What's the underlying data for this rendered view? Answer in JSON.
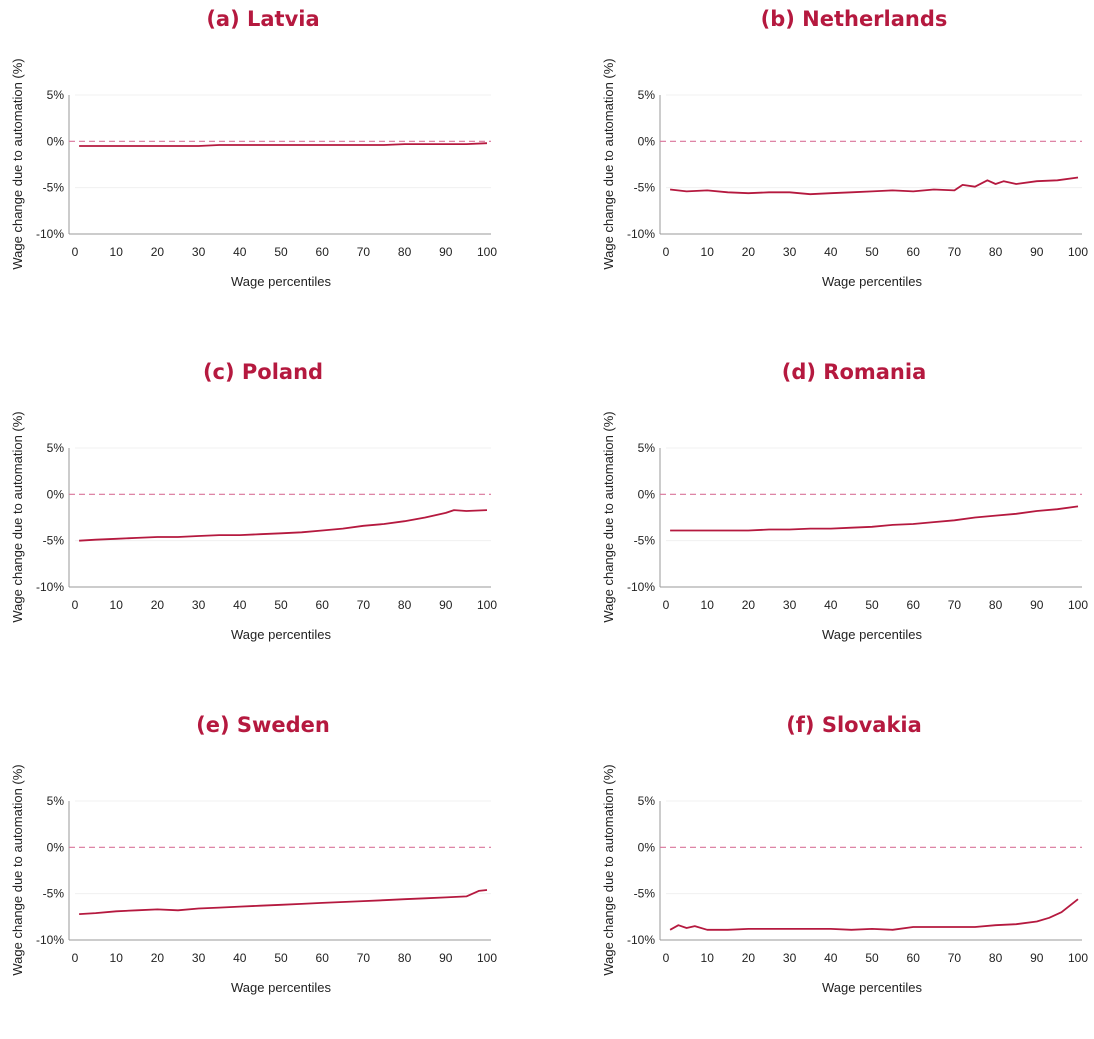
{
  "chart_data": [
    {
      "type": "line",
      "title": "(a) Latvia",
      "xlabel": "Wage percentiles",
      "ylabel": "Wage change due to automation (%)",
      "xlim": [
        0,
        100
      ],
      "ylim": [
        -10,
        5
      ],
      "xticks": [
        "0",
        "10",
        "20",
        "30",
        "40",
        "50",
        "60",
        "70",
        "80",
        "90",
        "100"
      ],
      "yticks": [
        "5%",
        "0%",
        "-5%",
        "-10%"
      ],
      "reference_line": {
        "y": 0,
        "style": "dashed"
      },
      "x": [
        1,
        5,
        10,
        15,
        20,
        25,
        30,
        35,
        40,
        45,
        50,
        55,
        60,
        65,
        70,
        75,
        80,
        85,
        90,
        95,
        100
      ],
      "series": [
        {
          "values": [
            -0.5,
            -0.5,
            -0.5,
            -0.5,
            -0.5,
            -0.5,
            -0.5,
            -0.4,
            -0.4,
            -0.4,
            -0.4,
            -0.4,
            -0.4,
            -0.4,
            -0.4,
            -0.4,
            -0.3,
            -0.3,
            -0.3,
            -0.3,
            -0.2
          ]
        }
      ]
    },
    {
      "type": "line",
      "title": "(b) Netherlands",
      "xlabel": "Wage percentiles",
      "ylabel": "Wage change due to automation (%)",
      "xlim": [
        0,
        100
      ],
      "ylim": [
        -10,
        5
      ],
      "xticks": [
        "0",
        "10",
        "20",
        "30",
        "40",
        "50",
        "60",
        "70",
        "80",
        "90",
        "100"
      ],
      "yticks": [
        "5%",
        "0%",
        "-5%",
        "-10%"
      ],
      "reference_line": {
        "y": 0,
        "style": "dashed"
      },
      "x": [
        1,
        5,
        10,
        15,
        20,
        25,
        30,
        35,
        40,
        45,
        50,
        55,
        60,
        65,
        70,
        72,
        75,
        78,
        80,
        82,
        85,
        90,
        95,
        100
      ],
      "series": [
        {
          "values": [
            -5.2,
            -5.4,
            -5.3,
            -5.5,
            -5.6,
            -5.5,
            -5.5,
            -5.7,
            -5.6,
            -5.5,
            -5.4,
            -5.3,
            -5.4,
            -5.2,
            -5.3,
            -4.7,
            -4.9,
            -4.2,
            -4.6,
            -4.3,
            -4.6,
            -4.3,
            -4.2,
            -3.9
          ]
        }
      ]
    },
    {
      "type": "line",
      "title": "(c) Poland",
      "xlabel": "Wage percentiles",
      "ylabel": "Wage change due to automation (%)",
      "xlim": [
        0,
        100
      ],
      "ylim": [
        -10,
        5
      ],
      "xticks": [
        "0",
        "10",
        "20",
        "30",
        "40",
        "50",
        "60",
        "70",
        "80",
        "90",
        "100"
      ],
      "yticks": [
        "5%",
        "0%",
        "-5%",
        "-10%"
      ],
      "reference_line": {
        "y": 0,
        "style": "dashed"
      },
      "x": [
        1,
        5,
        10,
        15,
        20,
        25,
        30,
        35,
        40,
        45,
        50,
        55,
        60,
        65,
        70,
        75,
        80,
        85,
        90,
        92,
        95,
        100
      ],
      "series": [
        {
          "values": [
            -5.0,
            -4.9,
            -4.8,
            -4.7,
            -4.6,
            -4.6,
            -4.5,
            -4.4,
            -4.4,
            -4.3,
            -4.2,
            -4.1,
            -3.9,
            -3.7,
            -3.4,
            -3.2,
            -2.9,
            -2.5,
            -2.0,
            -1.7,
            -1.8,
            -1.7
          ]
        }
      ]
    },
    {
      "type": "line",
      "title": "(d) Romania",
      "xlabel": "Wage percentiles",
      "ylabel": "Wage change due to automation (%)",
      "xlim": [
        0,
        100
      ],
      "ylim": [
        -10,
        5
      ],
      "xticks": [
        "0",
        "10",
        "20",
        "30",
        "40",
        "50",
        "60",
        "70",
        "80",
        "90",
        "100"
      ],
      "yticks": [
        "5%",
        "0%",
        "-5%",
        "-10%"
      ],
      "reference_line": {
        "y": 0,
        "style": "dashed"
      },
      "x": [
        1,
        5,
        10,
        15,
        20,
        25,
        30,
        35,
        40,
        45,
        50,
        55,
        60,
        65,
        70,
        75,
        80,
        85,
        90,
        95,
        100
      ],
      "series": [
        {
          "values": [
            -3.9,
            -3.9,
            -3.9,
            -3.9,
            -3.9,
            -3.8,
            -3.8,
            -3.7,
            -3.7,
            -3.6,
            -3.5,
            -3.3,
            -3.2,
            -3.0,
            -2.8,
            -2.5,
            -2.3,
            -2.1,
            -1.8,
            -1.6,
            -1.3
          ]
        }
      ]
    },
    {
      "type": "line",
      "title": "(e) Sweden",
      "xlabel": "Wage percentiles",
      "ylabel": "Wage change due to automation (%)",
      "xlim": [
        0,
        100
      ],
      "ylim": [
        -10,
        5
      ],
      "xticks": [
        "0",
        "10",
        "20",
        "30",
        "40",
        "50",
        "60",
        "70",
        "80",
        "90",
        "100"
      ],
      "yticks": [
        "5%",
        "0%",
        "-5%",
        "-10%"
      ],
      "reference_line": {
        "y": 0,
        "style": "dashed"
      },
      "x": [
        1,
        5,
        10,
        15,
        20,
        25,
        30,
        35,
        40,
        45,
        50,
        55,
        60,
        65,
        70,
        75,
        80,
        85,
        90,
        95,
        98,
        100
      ],
      "series": [
        {
          "values": [
            -7.2,
            -7.1,
            -6.9,
            -6.8,
            -6.7,
            -6.8,
            -6.6,
            -6.5,
            -6.4,
            -6.3,
            -6.2,
            -6.1,
            -6.0,
            -5.9,
            -5.8,
            -5.7,
            -5.6,
            -5.5,
            -5.4,
            -5.3,
            -4.7,
            -4.6
          ]
        }
      ]
    },
    {
      "type": "line",
      "title": "(f) Slovakia",
      "xlabel": "Wage percentiles",
      "ylabel": "Wage change due to automation (%)",
      "xlim": [
        0,
        100
      ],
      "ylim": [
        -10,
        5
      ],
      "xticks": [
        "0",
        "10",
        "20",
        "30",
        "40",
        "50",
        "60",
        "70",
        "80",
        "90",
        "100"
      ],
      "yticks": [
        "5%",
        "0%",
        "-5%",
        "-10%"
      ],
      "reference_line": {
        "y": 0,
        "style": "dashed"
      },
      "x": [
        1,
        3,
        5,
        7,
        10,
        15,
        20,
        25,
        30,
        35,
        40,
        45,
        50,
        55,
        60,
        65,
        70,
        75,
        80,
        85,
        90,
        93,
        96,
        100
      ],
      "series": [
        {
          "values": [
            -8.9,
            -8.4,
            -8.7,
            -8.5,
            -8.9,
            -8.9,
            -8.8,
            -8.8,
            -8.8,
            -8.8,
            -8.8,
            -8.9,
            -8.8,
            -8.9,
            -8.6,
            -8.6,
            -8.6,
            -8.6,
            -8.4,
            -8.3,
            -8.0,
            -7.6,
            -7.0,
            -5.6
          ]
        }
      ]
    }
  ],
  "colors": {
    "series": "#b5193f",
    "reference": "#d9749a",
    "title": "#b5193f",
    "axis": "#999999",
    "grid": "#f0f0f0",
    "text": "#222222"
  }
}
